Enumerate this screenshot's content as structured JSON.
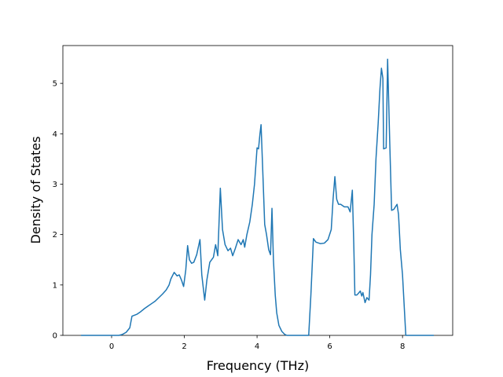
{
  "chart_data": {
    "type": "line",
    "xlabel": "Frequency (THz)",
    "ylabel": "Density of States",
    "xlim": [
      -1.34,
      9.38
    ],
    "ylim": [
      0,
      5.75
    ],
    "xticks": [
      0,
      2,
      4,
      6,
      8
    ],
    "yticks": [
      0,
      1,
      2,
      3,
      4,
      5
    ],
    "series": [
      {
        "color": "#1f77b4",
        "x": [
          -0.84,
          0.2,
          0.3,
          0.4,
          0.5,
          0.56,
          0.7,
          0.8,
          0.9,
          1.0,
          1.1,
          1.2,
          1.3,
          1.4,
          1.5,
          1.58,
          1.63,
          1.72,
          1.8,
          1.86,
          1.92,
          1.98,
          2.04,
          2.09,
          2.14,
          2.2,
          2.26,
          2.34,
          2.43,
          2.48,
          2.56,
          2.62,
          2.7,
          2.8,
          2.86,
          2.92,
          2.99,
          3.05,
          3.12,
          3.2,
          3.27,
          3.33,
          3.4,
          3.48,
          3.56,
          3.62,
          3.66,
          3.72,
          3.8,
          3.87,
          3.93,
          4.0,
          4.04,
          4.08,
          4.11,
          4.16,
          4.21,
          4.26,
          4.32,
          4.37,
          4.41,
          4.45,
          4.5,
          4.54,
          4.6,
          4.68,
          4.76,
          4.82,
          5.42,
          5.48,
          5.55,
          5.62,
          5.74,
          5.85,
          5.95,
          6.04,
          6.09,
          6.14,
          6.19,
          6.24,
          6.3,
          6.4,
          6.5,
          6.56,
          6.62,
          6.66,
          6.69,
          6.74,
          6.77,
          6.84,
          6.88,
          6.91,
          6.97,
          7.02,
          7.08,
          7.12,
          7.16,
          7.22,
          7.27,
          7.33,
          7.38,
          7.42,
          7.46,
          7.48,
          7.55,
          7.59,
          7.65,
          7.7,
          7.76,
          7.85,
          7.89,
          7.94,
          8.0,
          8.09,
          8.86
        ],
        "values": [
          0,
          0,
          0.02,
          0.06,
          0.15,
          0.38,
          0.42,
          0.47,
          0.53,
          0.58,
          0.63,
          0.68,
          0.75,
          0.82,
          0.9,
          1.0,
          1.12,
          1.25,
          1.18,
          1.2,
          1.1,
          0.97,
          1.3,
          1.78,
          1.5,
          1.43,
          1.45,
          1.6,
          1.9,
          1.2,
          0.7,
          1.1,
          1.45,
          1.55,
          1.8,
          1.58,
          2.92,
          2.1,
          1.8,
          1.68,
          1.73,
          1.58,
          1.72,
          1.9,
          1.8,
          1.9,
          1.75,
          2.0,
          2.25,
          2.6,
          3.0,
          3.72,
          3.7,
          4.0,
          4.18,
          3.2,
          2.2,
          2.0,
          1.7,
          1.6,
          2.52,
          1.5,
          0.8,
          0.45,
          0.2,
          0.08,
          0.02,
          0,
          0,
          0.8,
          1.92,
          1.85,
          1.82,
          1.83,
          1.9,
          2.1,
          2.7,
          3.15,
          2.7,
          2.6,
          2.6,
          2.55,
          2.55,
          2.45,
          2.88,
          1.8,
          0.8,
          0.8,
          0.82,
          0.88,
          0.78,
          0.85,
          0.65,
          0.75,
          0.7,
          1.2,
          2.0,
          2.6,
          3.5,
          4.2,
          4.9,
          5.3,
          5.1,
          3.7,
          3.72,
          5.48,
          3.8,
          2.48,
          2.5,
          2.6,
          2.4,
          1.7,
          1.2,
          0,
          0
        ]
      }
    ]
  }
}
